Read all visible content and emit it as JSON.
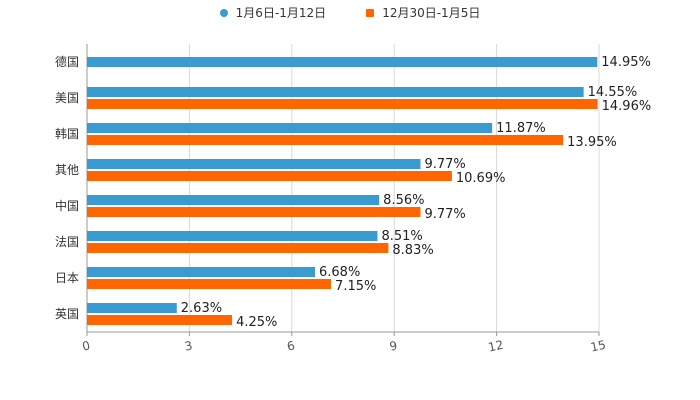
{
  "chart_data": {
    "type": "bar",
    "orientation": "horizontal",
    "title": "",
    "xlabel": "",
    "ylabel": "",
    "xlim": [
      0,
      15
    ],
    "xticks": [
      "0",
      "3",
      "6",
      "9",
      "12",
      "15"
    ],
    "grid": "vertical",
    "legend_position": "top-center",
    "categories": [
      "德国",
      "美国",
      "韩国",
      "其他",
      "中国",
      "法国",
      "日本",
      "英国"
    ],
    "series": [
      {
        "name": "1月6日-1月12日",
        "color": "#3a9bd0",
        "values": [
          14.95,
          14.55,
          11.87,
          9.77,
          8.56,
          8.51,
          6.68,
          2.63
        ],
        "labels": [
          "14.95%",
          "14.55%",
          "11.87%",
          "9.77%",
          "8.56%",
          "8.51%",
          "6.68%",
          "2.63%"
        ]
      },
      {
        "name": "12月30日-1月5日",
        "color": "#ff6600",
        "values": [
          null,
          14.96,
          13.95,
          10.69,
          9.77,
          8.83,
          7.15,
          4.25
        ],
        "labels": [
          "",
          "14.96%",
          "13.95%",
          "10.69%",
          "9.77%",
          "8.83%",
          "7.15%",
          "4.25%"
        ]
      }
    ]
  }
}
